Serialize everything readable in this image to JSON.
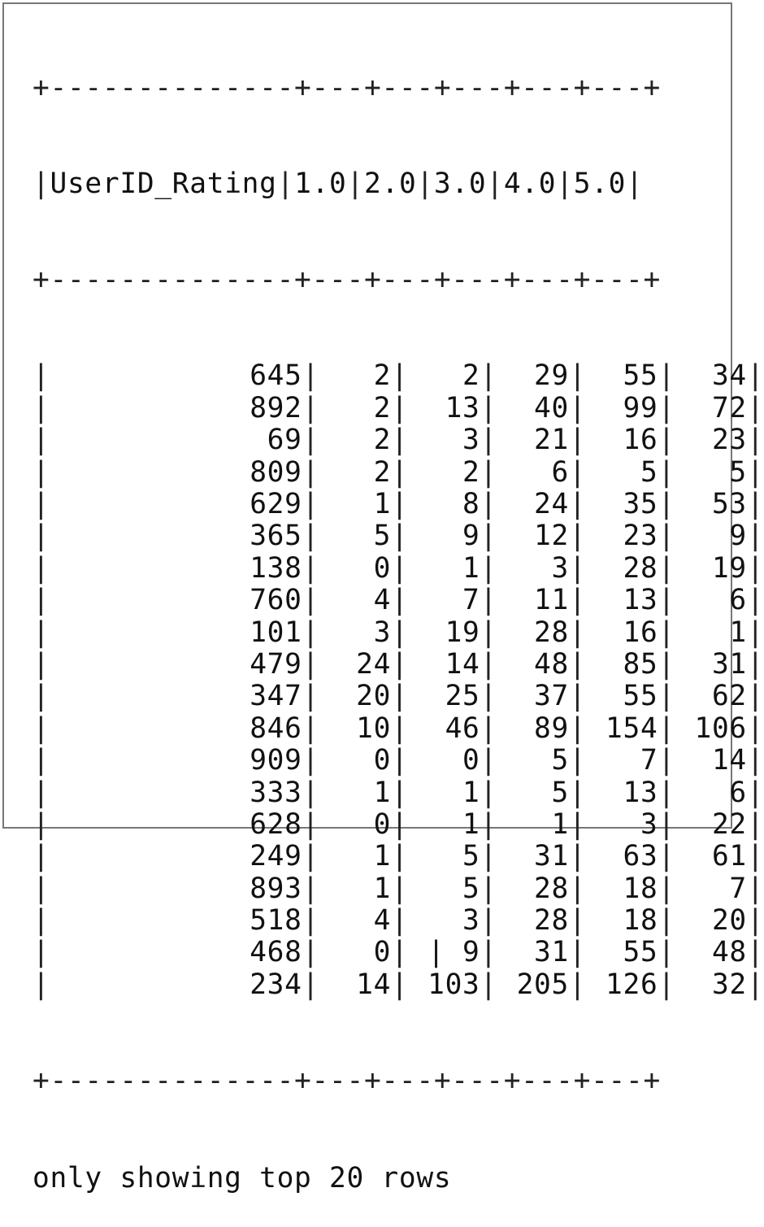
{
  "table": {
    "border_top": "+--------------+---+---+---+---+---+",
    "border_mid": "+--------------+---+---+---+---+---+",
    "border_bottom": "+--------------+---+---+---+---+---+",
    "headers": [
      "UserID_Rating",
      "1.0",
      "2.0",
      "3.0",
      "4.0",
      "5.0"
    ],
    "rows": [
      [
        "645",
        "2",
        "2",
        "29",
        "55",
        "34"
      ],
      [
        "892",
        "2",
        "13",
        "40",
        "99",
        "72"
      ],
      [
        "69",
        "2",
        "3",
        "21",
        "16",
        "23"
      ],
      [
        "809",
        "2",
        "2",
        "6",
        "5",
        "5"
      ],
      [
        "629",
        "1",
        "8",
        "24",
        "35",
        "53"
      ],
      [
        "365",
        "5",
        "9",
        "12",
        "23",
        "9"
      ],
      [
        "138",
        "0",
        "1",
        "3",
        "28",
        "19"
      ],
      [
        "760",
        "4",
        "7",
        "11",
        "13",
        "6"
      ],
      [
        "101",
        "3",
        "19",
        "28",
        "16",
        "1"
      ],
      [
        "479",
        "24",
        "14",
        "48",
        "85",
        "31"
      ],
      [
        "347",
        "20",
        "25",
        "37",
        "55",
        "62"
      ],
      [
        "846",
        "10",
        "46",
        "89",
        "154",
        "106"
      ],
      [
        "909",
        "0",
        "0",
        "5",
        "7",
        "14"
      ],
      [
        "333",
        "1",
        "1",
        "5",
        "13",
        "6"
      ],
      [
        "628",
        "0",
        "1",
        "1",
        "3",
        "22"
      ],
      [
        "249",
        "1",
        "5",
        "31",
        "63",
        "61"
      ],
      [
        "893",
        "1",
        "5",
        "28",
        "18",
        "7"
      ],
      [
        "518",
        "4",
        "3",
        "28",
        "18",
        "20"
      ],
      [
        "468",
        "0",
        "| 9",
        "31",
        "55",
        "48"
      ],
      [
        "234",
        "14",
        "103",
        "205",
        "126",
        "32"
      ]
    ],
    "footer": "only showing top 20 rows"
  }
}
